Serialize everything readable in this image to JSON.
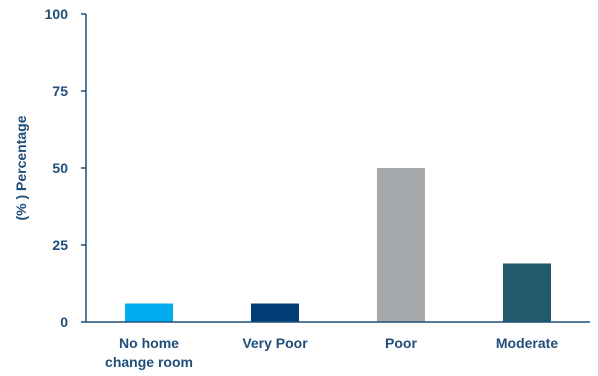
{
  "chart_data": {
    "type": "bar",
    "categories": [
      [
        "No home",
        "change room"
      ],
      [
        "Very Poor"
      ],
      [
        "Poor"
      ],
      [
        "Moderate"
      ]
    ],
    "values": [
      6,
      6,
      50,
      19
    ],
    "colors": [
      "#00aeef",
      "#003c78",
      "#a6a9ac",
      "#215a6b"
    ],
    "ylabel": "(% ) Percentage",
    "xlabel": "",
    "ylim": [
      0,
      100
    ],
    "yticks": [
      0,
      25,
      50,
      75,
      100
    ],
    "axis_color": "#1f4e79",
    "grid": false,
    "legend": "none"
  }
}
